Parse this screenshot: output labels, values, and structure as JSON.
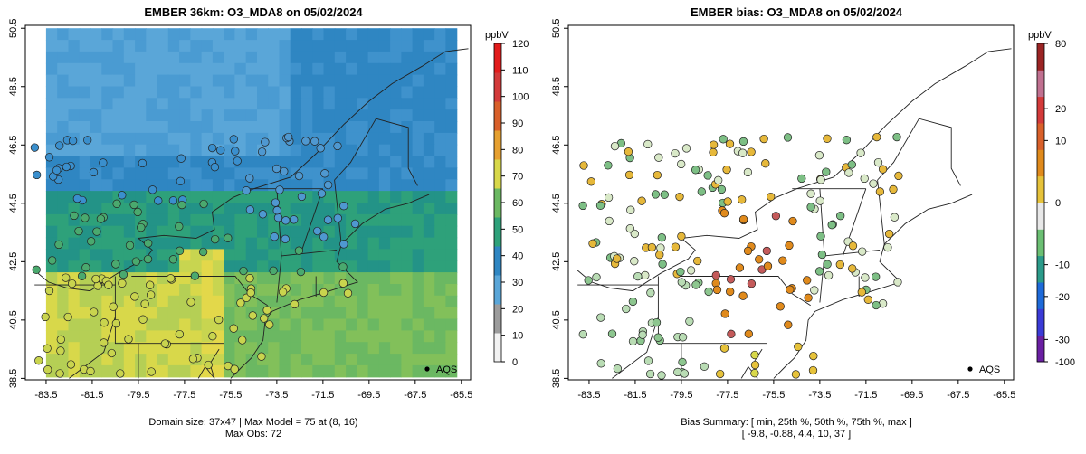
{
  "left_panel": {
    "title": "EMBER 36km: O3_MDA8 on 05/02/2024",
    "colorbar_unit": "ppbV",
    "colorbar_ticks": [
      "0",
      "10",
      "20",
      "30",
      "40",
      "50",
      "60",
      "70",
      "80",
      "90",
      "100",
      "110",
      "120"
    ],
    "legend_label": "AQS",
    "footer_line1": "Domain size: 37x47 | Max Model = 75 at (8, 16)",
    "footer_line2": "Max Obs: 72"
  },
  "right_panel": {
    "title": "EMBER bias: O3_MDA8 on 05/02/2024",
    "colorbar_unit": "ppbV",
    "colorbar_ticks": [
      "80",
      "20",
      "10",
      "0",
      "-10",
      "-20",
      "-30",
      "-100"
    ],
    "legend_label": "AQS",
    "footer_line1": "Bias Summary: [ min, 25th %, 50th %, 75th %, max ]",
    "footer_line2": "[ -9.8,  -0.88,  4.4,  10,  37 ]"
  },
  "axes": {
    "x_ticks": [
      "-83.5",
      "-81.5",
      "-79.5",
      "-77.5",
      "-75.5",
      "-73.5",
      "-71.5",
      "-69.5",
      "-67.5",
      "-65.5"
    ],
    "y_ticks": [
      "38.5",
      "40.5",
      "42.5",
      "44.5",
      "46.5",
      "48.5",
      "50.5"
    ],
    "lon_range": [
      -84.4,
      -65.1
    ],
    "lat_range": [
      38.45,
      50.6
    ]
  },
  "colors": {
    "field_blue": "#2f86c2",
    "field_lightblue": "#5aa6d8",
    "field_green": "#2ea17a",
    "field_yellow": "#d8d84a",
    "bias_orange": "#e08a1c",
    "bias_red": "#cc2222"
  }
}
